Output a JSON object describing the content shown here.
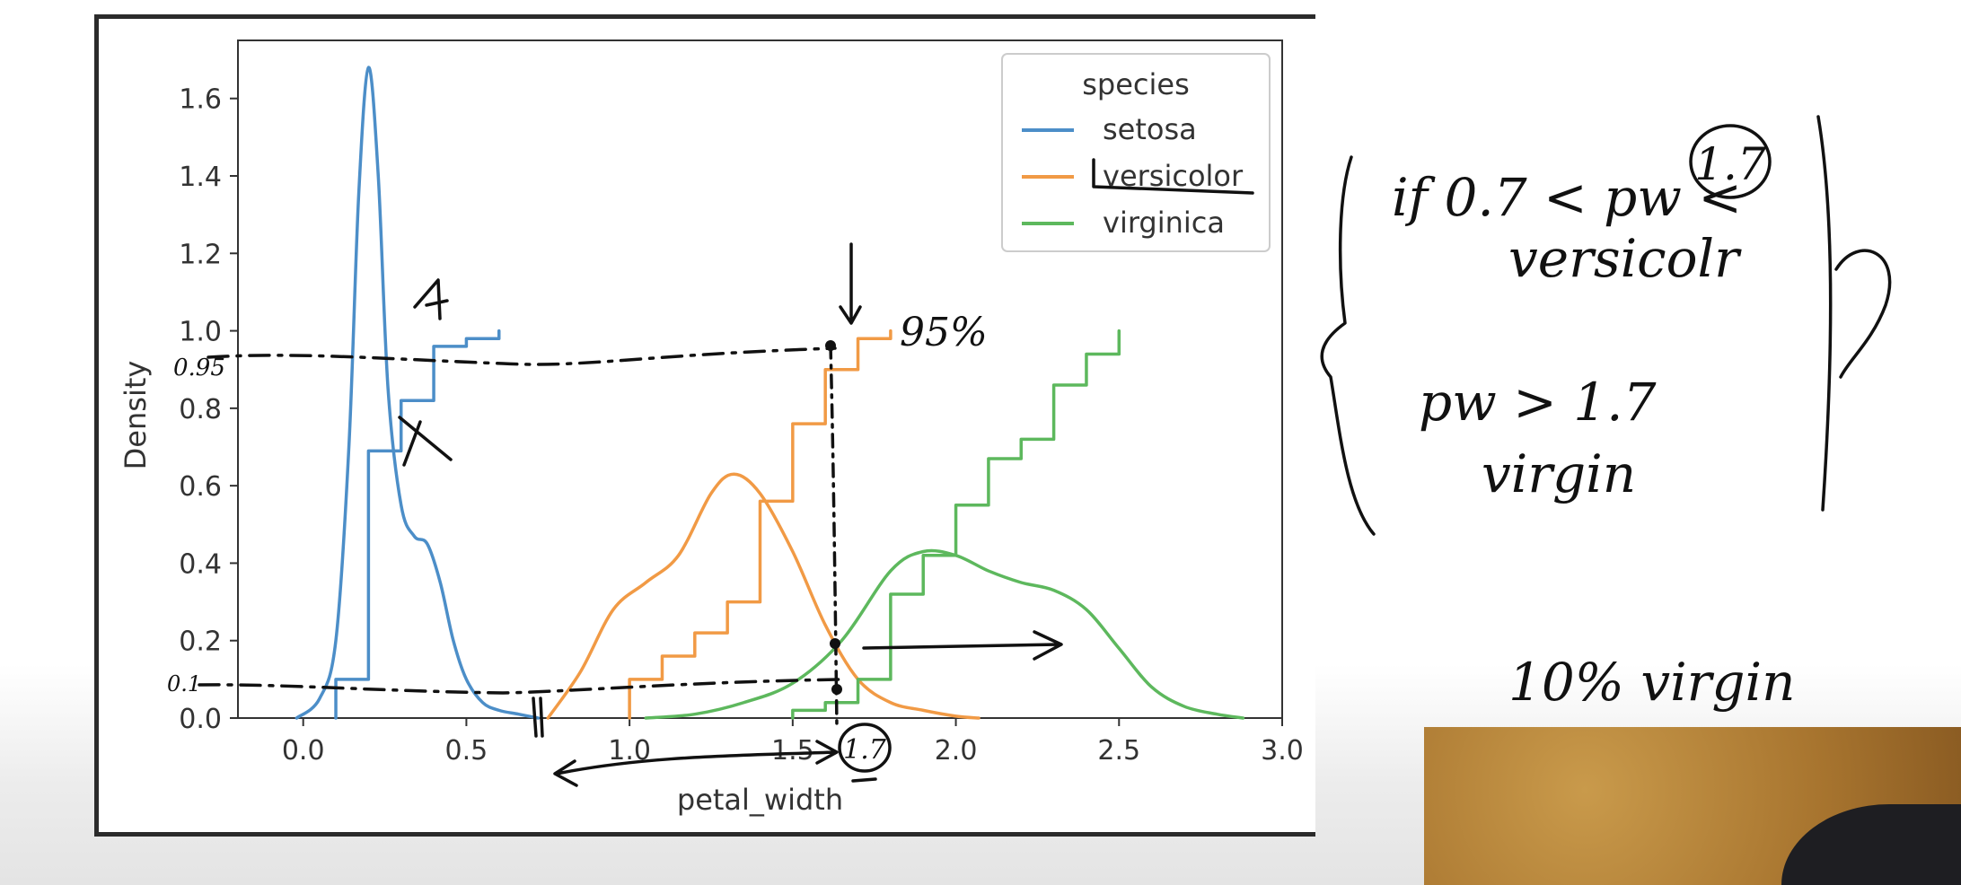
{
  "chart_data": {
    "type": "line",
    "xlabel": "petal_width",
    "ylabel": "Density",
    "xlim": [
      -0.2,
      3.0
    ],
    "ylim": [
      0.0,
      1.75
    ],
    "xticks": [
      0.0,
      0.5,
      1.0,
      1.5,
      2.0,
      2.5,
      3.0
    ],
    "xtick_labels": [
      "0.0",
      "0.5",
      "1.0",
      "1.5",
      "2.0",
      "2.5",
      "3.0"
    ],
    "yticks": [
      0.0,
      0.2,
      0.4,
      0.6,
      0.8,
      1.0,
      1.2,
      1.4,
      1.6
    ],
    "ytick_labels": [
      "0.0",
      "0.2",
      "0.4",
      "0.6",
      "0.8",
      "1.0",
      "1.2",
      "1.4",
      "1.6"
    ],
    "grid": false,
    "legend": {
      "title": "species",
      "position": "top-right",
      "entries": [
        {
          "label": "setosa",
          "color": "#4c8ec8"
        },
        {
          "label": "versicolor",
          "color": "#f19a45"
        },
        {
          "label": "virginica",
          "color": "#5db85d"
        }
      ]
    },
    "series": [
      {
        "name": "setosa",
        "kind": "kde",
        "color": "#4c8ec8",
        "x": [
          -0.02,
          0.05,
          0.1,
          0.14,
          0.17,
          0.2,
          0.23,
          0.26,
          0.3,
          0.34,
          0.38,
          0.42,
          0.46,
          0.5,
          0.55,
          0.6,
          0.66,
          0.72
        ],
        "y": [
          0.0,
          0.05,
          0.2,
          0.7,
          1.35,
          1.68,
          1.4,
          0.85,
          0.55,
          0.47,
          0.45,
          0.35,
          0.2,
          0.1,
          0.04,
          0.02,
          0.01,
          0.0
        ]
      },
      {
        "name": "setosa",
        "kind": "cdf",
        "color": "#4c8ec8",
        "x": [
          0.1,
          0.2,
          0.3,
          0.4,
          0.5,
          0.6
        ],
        "y": [
          0.1,
          0.69,
          0.82,
          0.96,
          0.98,
          1.0
        ]
      },
      {
        "name": "versicolor",
        "kind": "kde",
        "color": "#f19a45",
        "x": [
          0.75,
          0.85,
          0.95,
          1.05,
          1.15,
          1.25,
          1.32,
          1.4,
          1.5,
          1.6,
          1.7,
          1.8,
          1.9,
          2.0,
          2.07
        ],
        "y": [
          0.0,
          0.12,
          0.28,
          0.35,
          0.42,
          0.58,
          0.63,
          0.58,
          0.43,
          0.24,
          0.1,
          0.04,
          0.02,
          0.005,
          0.0
        ]
      },
      {
        "name": "versicolor",
        "kind": "cdf",
        "color": "#f19a45",
        "x": [
          1.0,
          1.1,
          1.2,
          1.3,
          1.4,
          1.5,
          1.6,
          1.7,
          1.8
        ],
        "y": [
          0.1,
          0.16,
          0.22,
          0.3,
          0.56,
          0.76,
          0.9,
          0.98,
          1.0
        ]
      },
      {
        "name": "virginica",
        "kind": "kde",
        "color": "#5db85d",
        "x": [
          1.05,
          1.2,
          1.35,
          1.5,
          1.65,
          1.8,
          1.9,
          2.0,
          2.1,
          2.2,
          2.3,
          2.4,
          2.5,
          2.6,
          2.7,
          2.8,
          2.88
        ],
        "y": [
          0.0,
          0.01,
          0.04,
          0.09,
          0.2,
          0.38,
          0.43,
          0.42,
          0.38,
          0.35,
          0.33,
          0.28,
          0.18,
          0.08,
          0.03,
          0.01,
          0.0
        ]
      },
      {
        "name": "virginica",
        "kind": "cdf",
        "color": "#5db85d",
        "x": [
          1.5,
          1.6,
          1.7,
          1.8,
          1.9,
          2.0,
          2.1,
          2.2,
          2.3,
          2.4,
          2.5
        ],
        "y": [
          0.02,
          0.04,
          0.1,
          0.32,
          0.42,
          0.55,
          0.67,
          0.72,
          0.86,
          0.94,
          1.0
        ]
      }
    ]
  },
  "annotations": {
    "label_095": "0.95",
    "label_01": "0.1",
    "label_95pct": "95%",
    "label_17_axis": "1.7",
    "rule_1_condition": "if 0.7 < pw <",
    "rule_1_threshold": "1.7",
    "rule_1_result": "versicolr",
    "rule_2_condition": "pw > 1.7",
    "rule_2_result": "virgin",
    "note_10pct": "10% virgin"
  }
}
